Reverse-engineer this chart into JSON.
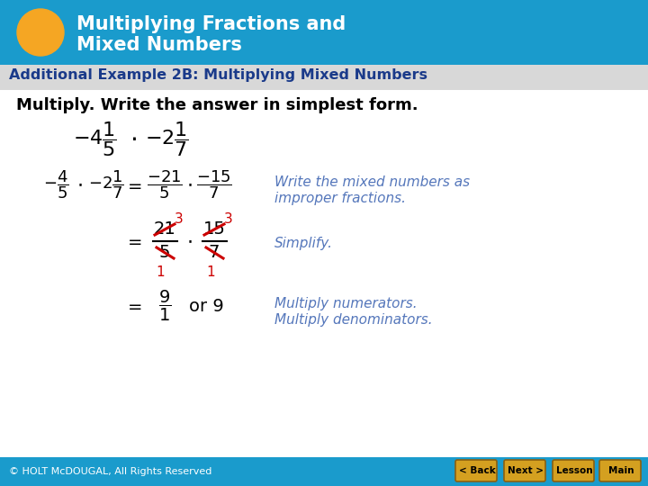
{
  "header_bg_color": "#1A9BCC",
  "header_text_color": "#FFFFFF",
  "circle_color": "#F5A623",
  "subheader_text": "Additional Example 2B: Multiplying Mixed Numbers",
  "subheader_color": "#1A3A8A",
  "subheader_bg": "#D8D8D8",
  "instruction_text": "Multiply. Write the answer in simplest form.",
  "instruction_color": "#000000",
  "body_bg": "#FFFFFF",
  "footer_bg": "#1A9BCC",
  "footer_text": "© HOLT McDOUGAL, All Rights Reserved",
  "footer_text_color": "#FFFFFF",
  "blue_annotation": "#5577BB",
  "red_color": "#CC0000",
  "black_color": "#000000",
  "btn_face": "#D4A020",
  "btn_edge": "#8B6010"
}
